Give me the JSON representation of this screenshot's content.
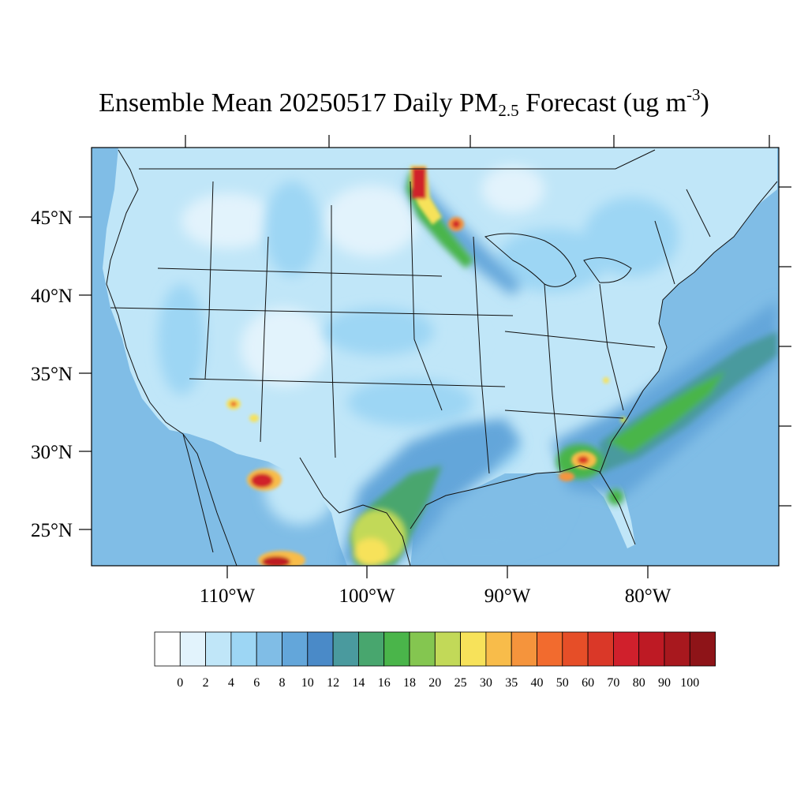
{
  "title": {
    "main": "Ensemble Mean 20250517 Daily PM",
    "subscript": "2.5",
    "after_subscript": " Forecast (ug m",
    "superscript": "-3",
    "close": ")"
  },
  "axes": {
    "lat_labels": [
      "45°N",
      "40°N",
      "35°N",
      "30°N",
      "25°N"
    ],
    "lon_labels": [
      "110°W",
      "100°W",
      "90°W",
      "80°W"
    ]
  },
  "colorbar": {
    "labels": [
      "0",
      "2",
      "4",
      "6",
      "8",
      "10",
      "12",
      "14",
      "16",
      "18",
      "20",
      "25",
      "30",
      "35",
      "40",
      "50",
      "60",
      "70",
      "80",
      "90",
      "100"
    ],
    "colors": [
      "#ffffff",
      "#e2f3fc",
      "#c0e6f8",
      "#9dd6f4",
      "#80bde6",
      "#63a6da",
      "#4a8ac8",
      "#4a9a9e",
      "#48a66e",
      "#4ab54a",
      "#84c650",
      "#c2d958",
      "#f7e25a",
      "#f8bc4a",
      "#f5943c",
      "#f26b2e",
      "#e64e28",
      "#da3828",
      "#d0202c",
      "#be1a24",
      "#a8181e",
      "#8e1418"
    ]
  },
  "map": {
    "colors": {
      "ocean": "#80bde6",
      "land": "#c0e6f8",
      "light": "#e2f3fc",
      "mid": "#9dd6f4",
      "dark": "#63a6da",
      "darker": "#4a8ac8"
    }
  }
}
